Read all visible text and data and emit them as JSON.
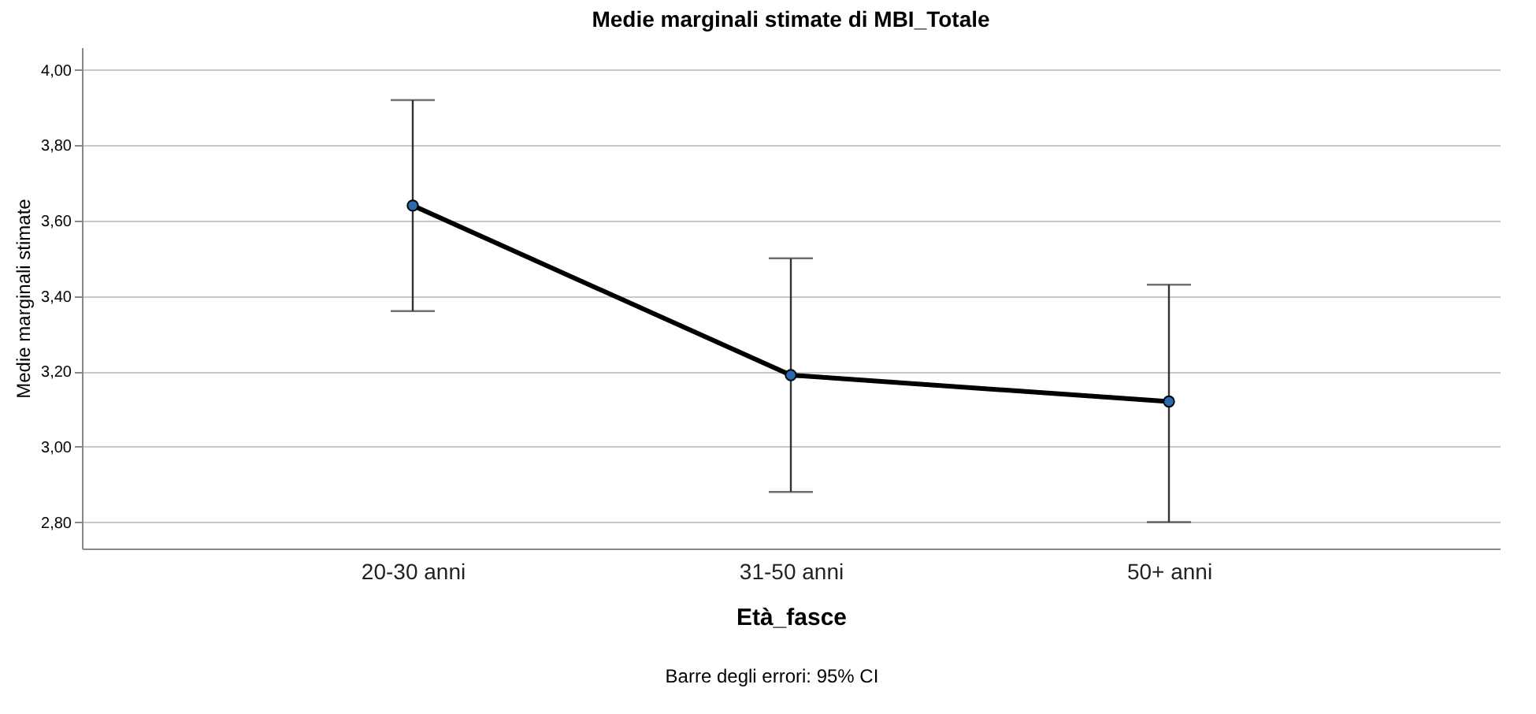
{
  "chart_data": {
    "type": "line",
    "title": "Medie marginali stimate di MBI_Totale",
    "xlabel": "Età_fasce",
    "ylabel": "Medie marginali stimate",
    "categories": [
      "20-30 anni",
      "31-50 anni",
      "50+ anni"
    ],
    "series": [
      {
        "color": "#000000",
        "values": [
          3.64,
          3.19,
          3.12
        ],
        "errors": [
          [
            3.36,
            3.92
          ],
          [
            2.88,
            3.5
          ],
          [
            2.8,
            3.43
          ]
        ]
      }
    ],
    "ylim": [
      2.73,
      4.06
    ],
    "yticks": [
      {
        "value": 2.8,
        "label": "2,80"
      },
      {
        "value": 3.0,
        "label": "3,00"
      },
      {
        "value": 3.2,
        "label": "3,20"
      },
      {
        "value": 3.4,
        "label": "3,40"
      },
      {
        "value": 3.6,
        "label": "3,60"
      },
      {
        "value": 3.8,
        "label": "3,80"
      },
      {
        "value": 4.0,
        "label": "4,00"
      }
    ],
    "grid": "y",
    "marker": "circle",
    "line_style": "solid",
    "annotations": [
      "Barre degli errori: 95% CI"
    ]
  }
}
